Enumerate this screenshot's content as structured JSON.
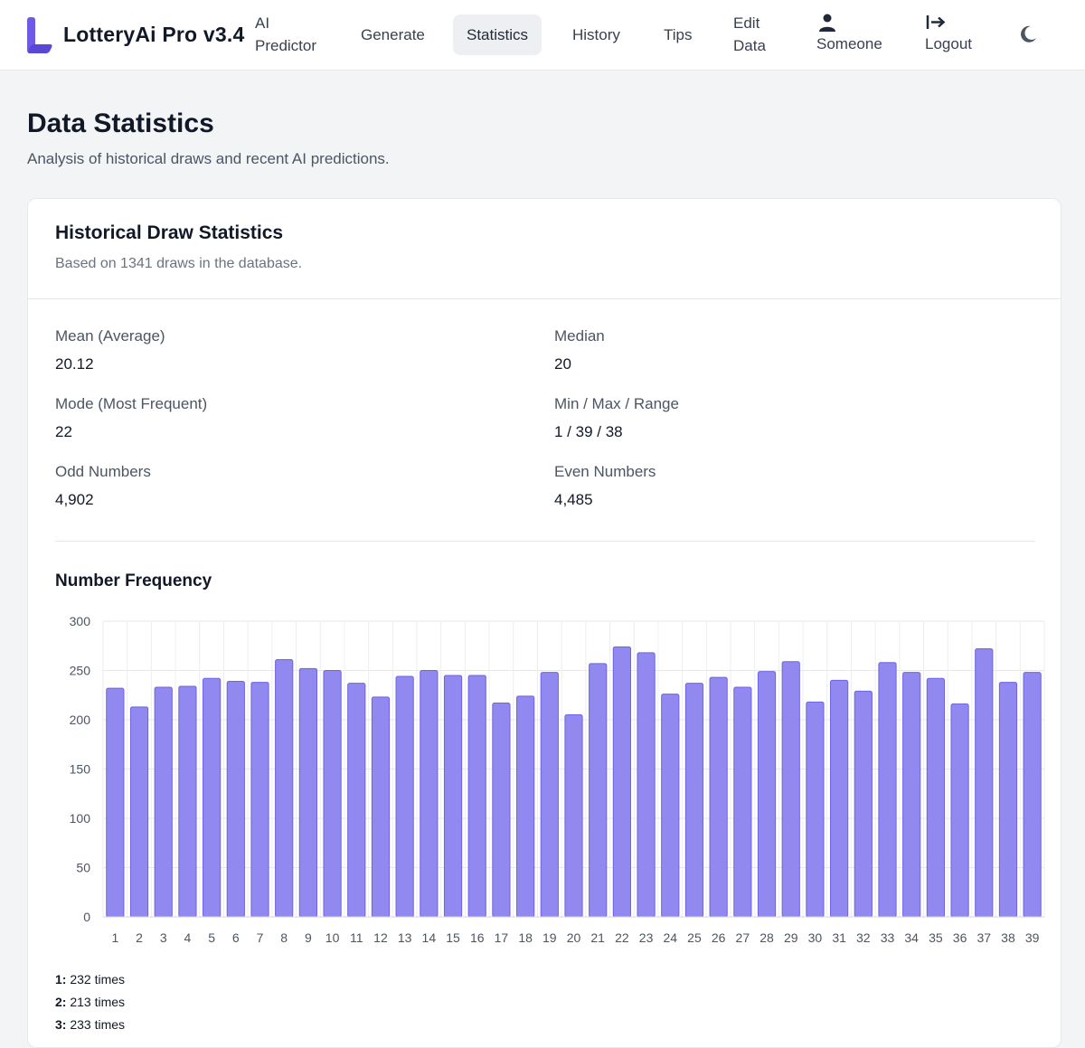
{
  "nav": {
    "brand": "LotteryAi Pro v3.4",
    "ai_predictor_line1": "AI",
    "ai_predictor_line2": "Predictor",
    "generate": "Generate",
    "statistics": "Statistics",
    "history": "History",
    "tips": "Tips",
    "edit_line1": "Edit",
    "edit_line2": "Data",
    "user": "Someone",
    "logout": "Logout",
    "accent_color": "#6d5ae6"
  },
  "page": {
    "title": "Data Statistics",
    "subtitle": "Analysis of historical draws and recent AI predictions."
  },
  "card": {
    "title": "Historical Draw Statistics",
    "subtitle": "Based on 1341 draws in the database.",
    "stats": [
      {
        "label": "Mean (Average)",
        "value": "20.12"
      },
      {
        "label": "Median",
        "value": "20"
      },
      {
        "label": "Mode (Most Frequent)",
        "value": "22"
      },
      {
        "label": "Min / Max / Range",
        "value": "1 / 39 / 38"
      },
      {
        "label": "Odd Numbers",
        "value": "4,902"
      },
      {
        "label": "Even Numbers",
        "value": "4,485"
      }
    ],
    "chart_title": "Number Frequency"
  },
  "chart_data": {
    "type": "bar",
    "title": "Number Frequency",
    "categories": [
      "1",
      "2",
      "3",
      "4",
      "5",
      "6",
      "7",
      "8",
      "9",
      "10",
      "11",
      "12",
      "13",
      "14",
      "15",
      "16",
      "17",
      "18",
      "19",
      "20",
      "21",
      "22",
      "23",
      "24",
      "25",
      "26",
      "27",
      "28",
      "29",
      "30",
      "31",
      "32",
      "33",
      "34",
      "35",
      "36",
      "37",
      "38",
      "39"
    ],
    "values": [
      232,
      213,
      233,
      234,
      242,
      239,
      238,
      261,
      252,
      250,
      237,
      223,
      244,
      250,
      245,
      245,
      217,
      224,
      248,
      205,
      257,
      274,
      268,
      226,
      237,
      243,
      233,
      249,
      259,
      218,
      240,
      229,
      258,
      248,
      242,
      216,
      272,
      238,
      248
    ],
    "ylim": [
      0,
      300
    ],
    "yticks": [
      0,
      50,
      100,
      150,
      200,
      250,
      300
    ],
    "grid": true,
    "bar_color": "#9189f0",
    "bar_border": "#6d63e4"
  },
  "freq_list": [
    {
      "num": "1:",
      "text": "232 times"
    },
    {
      "num": "2:",
      "text": "213 times"
    },
    {
      "num": "3:",
      "text": "233 times"
    }
  ]
}
